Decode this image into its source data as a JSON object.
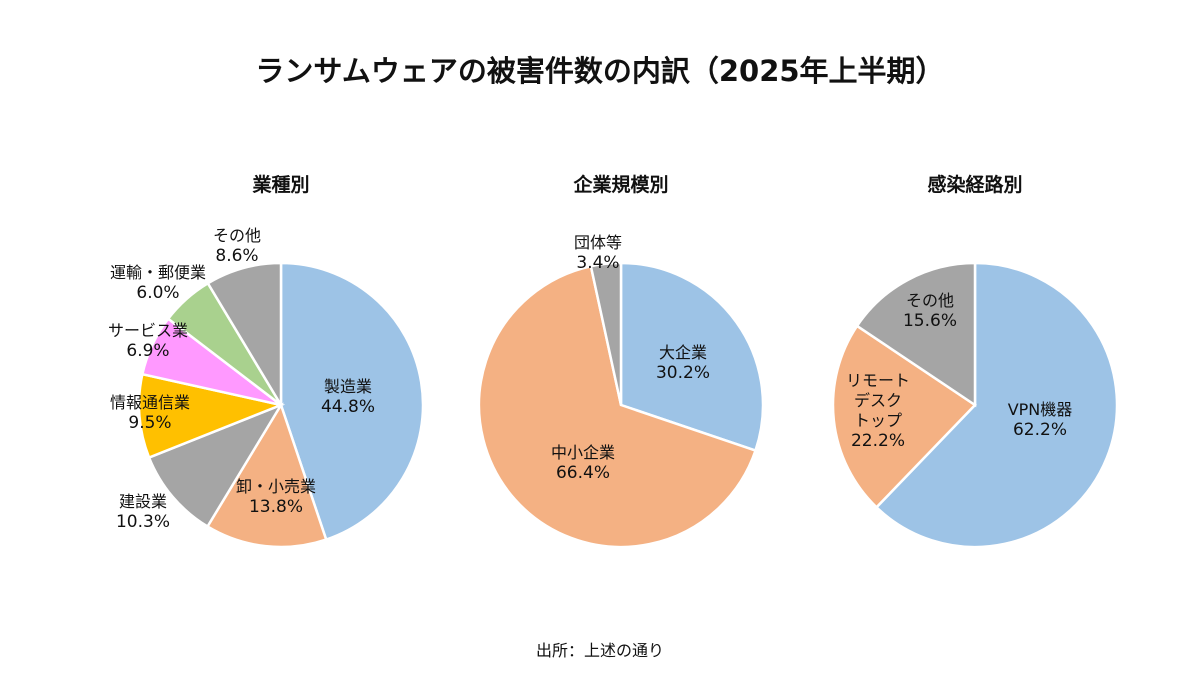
{
  "title": "ランサムウェアの被害件数の内訳（2025年上半期）",
  "source": "出所：上述の通り",
  "chart_data": [
    {
      "type": "pie",
      "title": "業種別",
      "slices": [
        {
          "label": "製造業",
          "value": 44.8,
          "pct": "44.8%",
          "color": "#9DC3E6"
        },
        {
          "label": "卸・小売業",
          "value": 13.8,
          "pct": "13.8%",
          "color": "#F4B183"
        },
        {
          "label": "建設業",
          "value": 10.3,
          "pct": "10.3%",
          "color": "#A5A5A5"
        },
        {
          "label": "情報通信業",
          "value": 9.5,
          "pct": "9.5%",
          "color": "#FFC000"
        },
        {
          "label": "サービス業",
          "value": 6.9,
          "pct": "6.9%",
          "color": "#FF99FF"
        },
        {
          "label": "運輸・郵便業",
          "value": 6.0,
          "pct": "6.0%",
          "color": "#A9D18E"
        },
        {
          "label": "その他",
          "value": 8.6,
          "pct": "8.6%",
          "color": "#A5A5A5"
        }
      ]
    },
    {
      "type": "pie",
      "title": "企業規模別",
      "slices": [
        {
          "label": "大企業",
          "value": 30.2,
          "pct": "30.2%",
          "color": "#9DC3E6"
        },
        {
          "label": "中小企業",
          "value": 66.4,
          "pct": "66.4%",
          "color": "#F4B183"
        },
        {
          "label": "団体等",
          "value": 3.4,
          "pct": "3.4%",
          "color": "#A5A5A5"
        }
      ]
    },
    {
      "type": "pie",
      "title": "感染経路別",
      "slices": [
        {
          "label": "VPN機器",
          "value": 62.2,
          "pct": "62.2%",
          "color": "#9DC3E6"
        },
        {
          "label": "リモート\nデスク\nトップ",
          "value": 22.2,
          "pct": "22.2%",
          "color": "#F4B183"
        },
        {
          "label": "その他",
          "value": 15.6,
          "pct": "15.6%",
          "color": "#A5A5A5"
        }
      ]
    }
  ]
}
